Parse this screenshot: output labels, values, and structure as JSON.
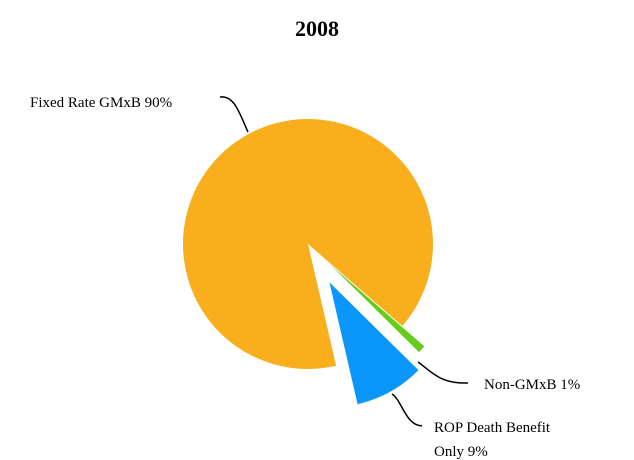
{
  "chart_data": {
    "type": "pie",
    "title": "2008",
    "categories": [
      "Fixed Rate GMxB",
      "Non-GMxB",
      "ROP Death Benefit Only"
    ],
    "values": [
      90,
      1,
      9
    ],
    "value_labels": [
      "90%",
      "1%",
      "9%"
    ],
    "colors": [
      "#f9ae1e",
      "#66cc1a",
      "#0a96fa"
    ]
  }
}
